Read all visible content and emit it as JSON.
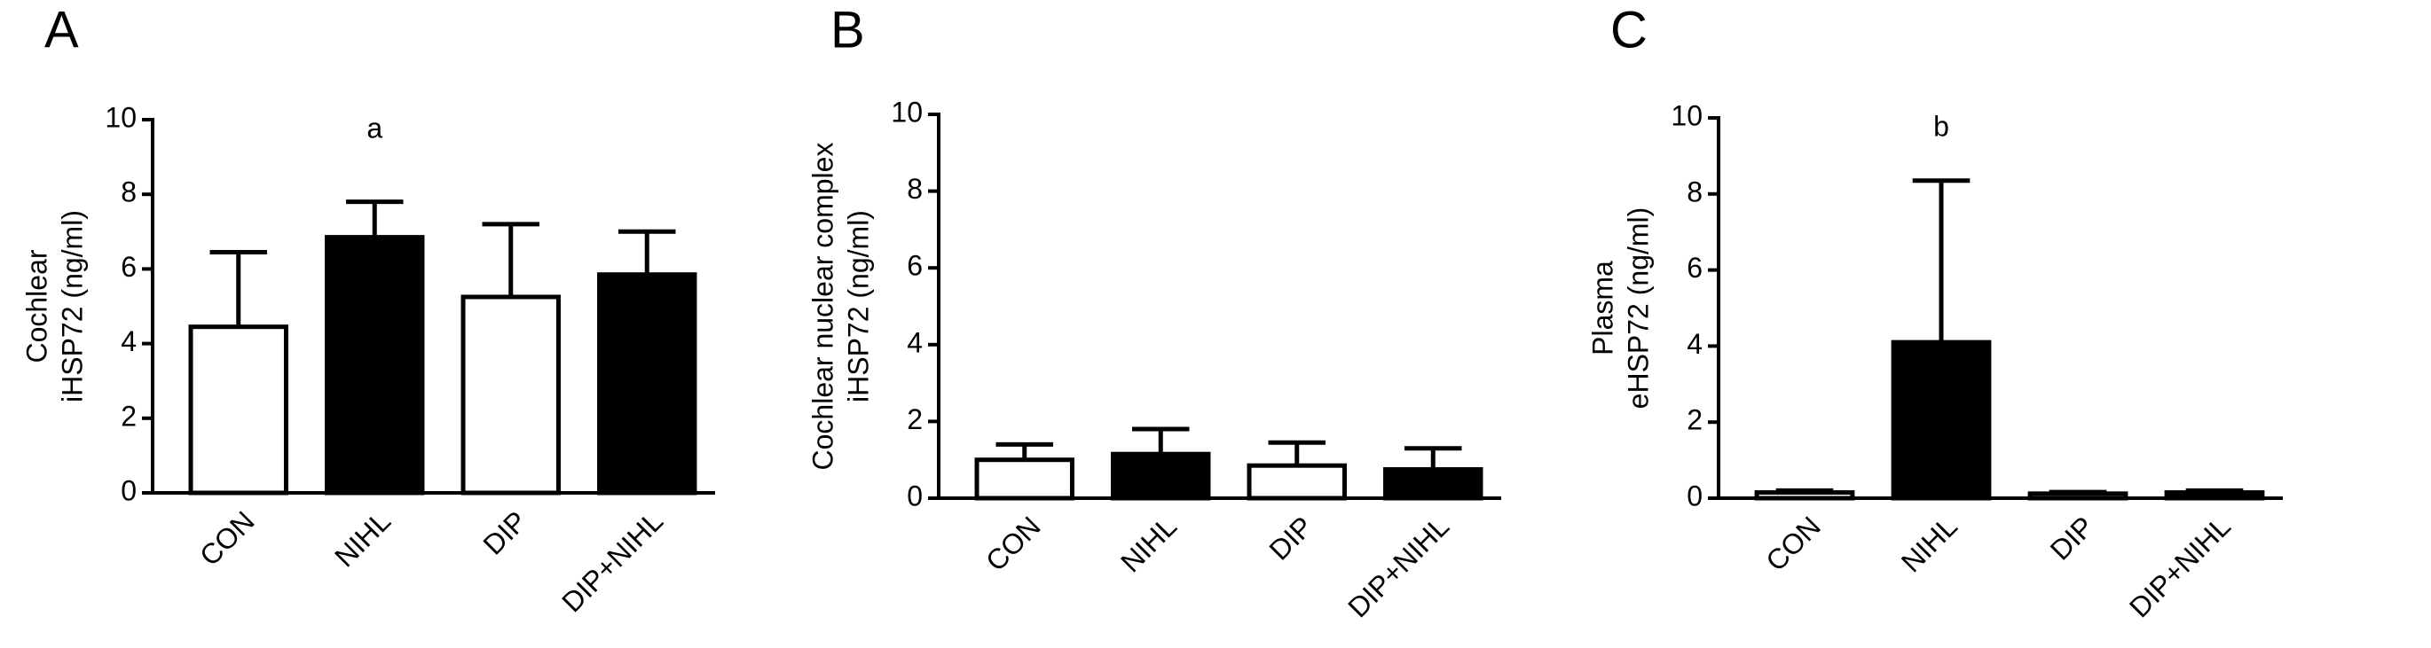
{
  "chart_data": [
    {
      "type": "bar",
      "panel_label": "A",
      "ylabel": [
        "Cochlear",
        "iHSP72 (ng/ml)"
      ],
      "categories": [
        "CON",
        "NIHL",
        "DIP",
        "DIP+NIHL"
      ],
      "values": [
        4.45,
        6.85,
        5.25,
        5.85
      ],
      "errors": [
        2.0,
        0.95,
        1.95,
        1.15
      ],
      "colors": [
        "#ffffff",
        "#000000",
        "#ffffff",
        "#000000"
      ],
      "ylim": [
        0,
        10
      ],
      "yticks": [
        0,
        2,
        4,
        6,
        8,
        10
      ],
      "annotation": "a"
    },
    {
      "type": "bar",
      "panel_label": "B",
      "ylabel": [
        "Cochlear nuclear complex",
        "iHSP72 (ng/ml)"
      ],
      "categories": [
        "CON",
        "NIHL",
        "DIP",
        "DIP+NIHL"
      ],
      "values": [
        1.0,
        1.15,
        0.85,
        0.75
      ],
      "errors": [
        0.4,
        0.65,
        0.6,
        0.55
      ],
      "colors": [
        "#ffffff",
        "#000000",
        "#ffffff",
        "#000000"
      ],
      "ylim": [
        0,
        10
      ],
      "yticks": [
        0,
        2,
        4,
        6,
        8,
        10
      ]
    },
    {
      "type": "bar",
      "panel_label": "C",
      "ylabel": [
        "Plasma",
        "eHSP72 (ng/ml)"
      ],
      "categories": [
        "CON",
        "NIHL",
        "DIP",
        "DIP+NIHL"
      ],
      "values": [
        0.15,
        4.1,
        0.12,
        0.15
      ],
      "errors": [
        0.05,
        4.25,
        0.04,
        0.05
      ],
      "colors": [
        "#ffffff",
        "#000000",
        "#ffffff",
        "#000000"
      ],
      "ylim": [
        0,
        10
      ],
      "yticks": [
        0,
        2,
        4,
        6,
        8,
        10
      ],
      "annotation": "b"
    }
  ]
}
